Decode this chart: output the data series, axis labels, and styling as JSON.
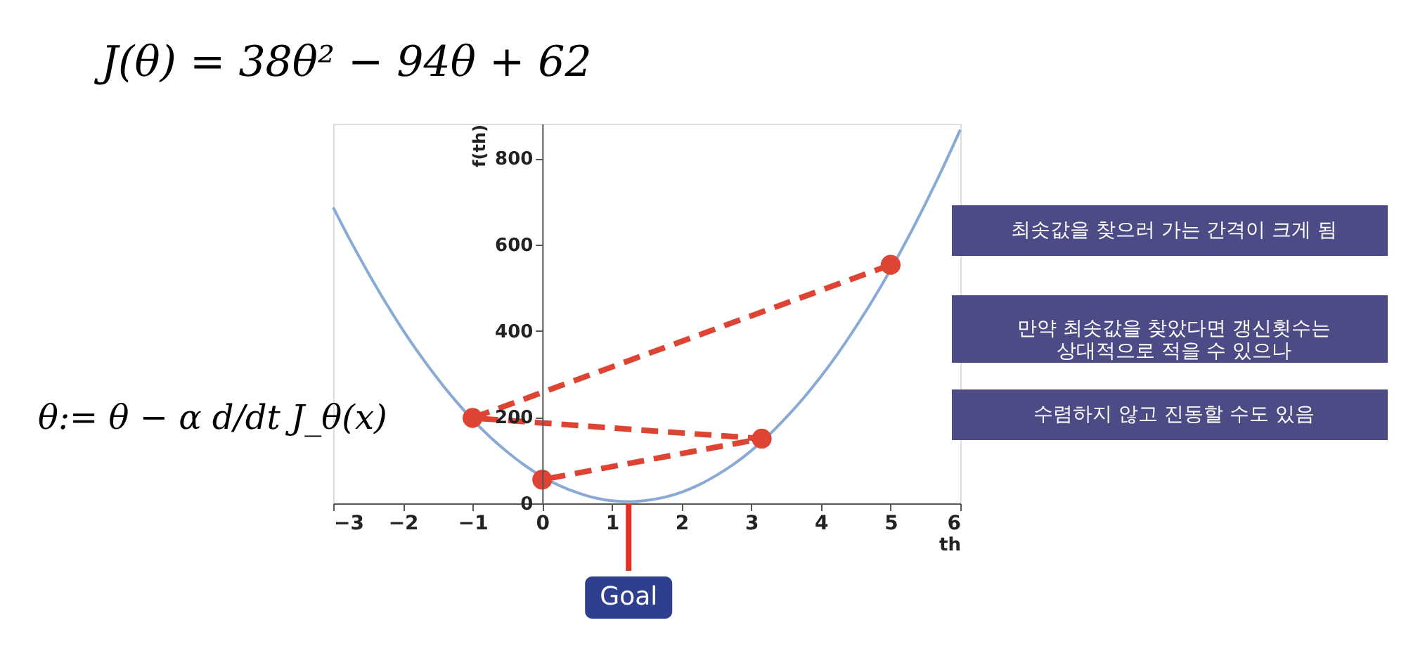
{
  "chart_data": {
    "type": "line",
    "title": "J(θ) = 38θ² − 94θ + 62",
    "xlabel": "th",
    "ylabel": "f(th)",
    "xlim": [
      -3,
      6
    ],
    "xticks": [
      -3,
      -2,
      -1,
      0,
      1,
      2,
      3,
      4,
      5,
      6
    ],
    "ylim": [
      0,
      880
    ],
    "yticks": [
      0,
      200,
      400,
      600,
      800
    ],
    "grid": false,
    "legend": false,
    "series": [
      {
        "type": "line",
        "color": "#8aaad6",
        "marker": "none",
        "line_style": "solid",
        "x": [
          -3,
          -2.75,
          -2.5,
          -2.25,
          -2,
          -1.75,
          -1.5,
          -1.25,
          -1,
          -0.75,
          -0.5,
          -0.25,
          0,
          0.25,
          0.5,
          0.75,
          1,
          1.25,
          1.5,
          1.75,
          2,
          2.25,
          2.5,
          2.75,
          3,
          3.25,
          3.5,
          3.75,
          4,
          4.25,
          4.5,
          4.75,
          5,
          5.25,
          5.5,
          5.75,
          6
        ],
        "values": [
          686,
          608,
          535,
          466,
          402,
          343,
          289,
          239,
          194,
          154,
          119,
          88,
          62,
          41,
          25,
          13,
          6,
          4,
          7,
          14,
          26,
          43,
          65,
          91,
          122,
          158,
          199,
          244,
          294,
          349,
          409,
          473,
          542,
          616,
          695,
          778,
          866
        ]
      },
      {
        "type": "line",
        "color": "#dd4433",
        "marker": "circle",
        "line_style": "dashed",
        "x": [
          5,
          -1,
          3.15,
          0
        ],
        "values": [
          553,
          198,
          150,
          55
        ]
      }
    ],
    "annotations": [
      "θ:= θ − α d/dt J_θ(x)",
      "최솟값을 찾으러 가는 간격이 크게 됨",
      "만약 최솟값을 찾았다면 갱신횟수는\n상대적으로 적을 수 있으나",
      "수렴하지 않고 진동할 수도 있음",
      {
        "text": "Goal",
        "x": 1.24,
        "y": 0
      }
    ]
  }
}
